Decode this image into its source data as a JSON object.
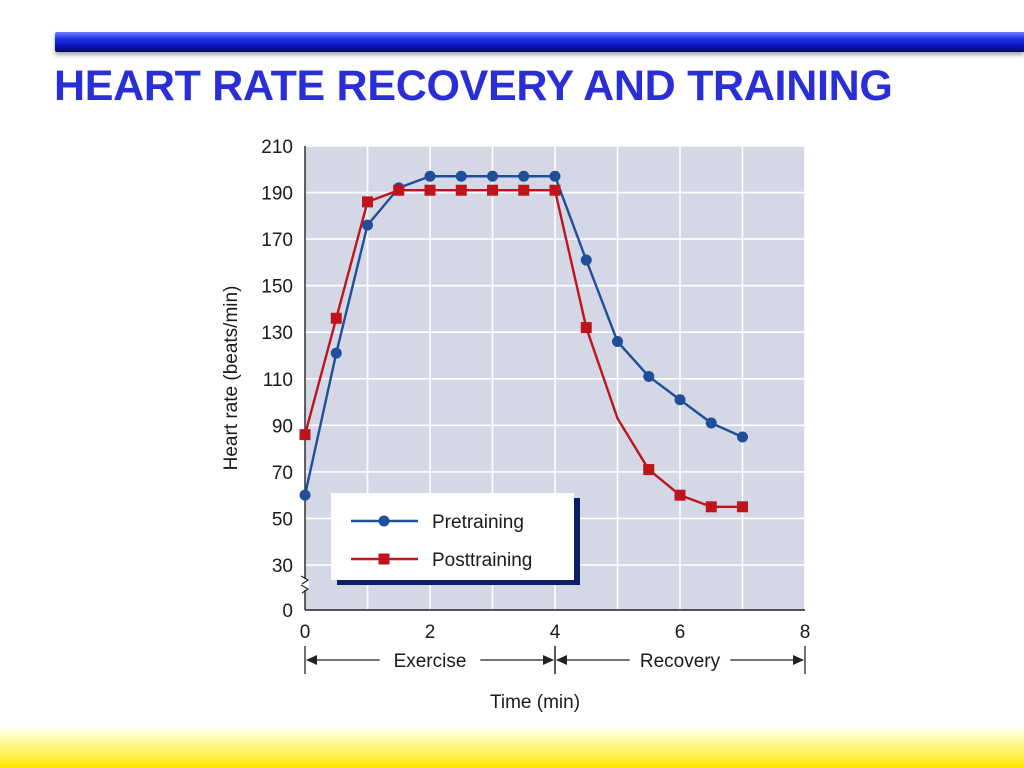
{
  "slide": {
    "title": "HEART RATE RECOVERY AND TRAINING"
  },
  "colors": {
    "title": "#2a2ed6",
    "pretraining": "#1f4f99",
    "posttraining": "#c0141c",
    "plot_background": "#d4d7e6"
  },
  "chart_data": {
    "type": "line",
    "title": "",
    "xlabel": "Time (min)",
    "ylabel": "Heart rate (beats/min)",
    "xlim": [
      0,
      8
    ],
    "ylim": [
      0,
      210
    ],
    "axis_break": "between 0 and 30 on y-axis",
    "grid": true,
    "x_ticks": [
      "0",
      "2",
      "4",
      "6",
      "8"
    ],
    "y_ticks": [
      "0",
      "30",
      "50",
      "70",
      "90",
      "110",
      "130",
      "150",
      "170",
      "190",
      "210"
    ],
    "phases": [
      {
        "label": "Exercise",
        "from": 0,
        "to": 4
      },
      {
        "label": "Recovery",
        "from": 4,
        "to": 8
      }
    ],
    "legend": {
      "position": "bottom-left"
    },
    "series": [
      {
        "name": "Pretraining",
        "marker": "circle",
        "color": "#1f4f99",
        "points": [
          [
            0,
            60
          ],
          [
            0.5,
            121
          ],
          [
            1,
            176
          ],
          [
            1.5,
            192
          ],
          [
            2,
            197
          ],
          [
            2.5,
            197
          ],
          [
            3,
            197
          ],
          [
            3.5,
            197
          ],
          [
            4,
            197
          ],
          [
            4.5,
            161
          ],
          [
            5,
            126
          ],
          [
            5.5,
            111
          ],
          [
            6,
            101
          ],
          [
            6.5,
            91
          ],
          [
            7,
            85
          ]
        ]
      },
      {
        "name": "Posttraining",
        "marker": "square",
        "color": "#c0141c",
        "points": [
          [
            0,
            86
          ],
          [
            0.5,
            136
          ],
          [
            1,
            186
          ],
          [
            1.5,
            191
          ],
          [
            2,
            191
          ],
          [
            2.5,
            191
          ],
          [
            3,
            191
          ],
          [
            3.5,
            191
          ],
          [
            4,
            191
          ],
          [
            4.5,
            132
          ],
          [
            5,
            93
          ],
          [
            5.5,
            71
          ],
          [
            6,
            60
          ],
          [
            6.5,
            55
          ],
          [
            7,
            55
          ]
        ],
        "unmarked": [
          5
        ]
      }
    ]
  }
}
